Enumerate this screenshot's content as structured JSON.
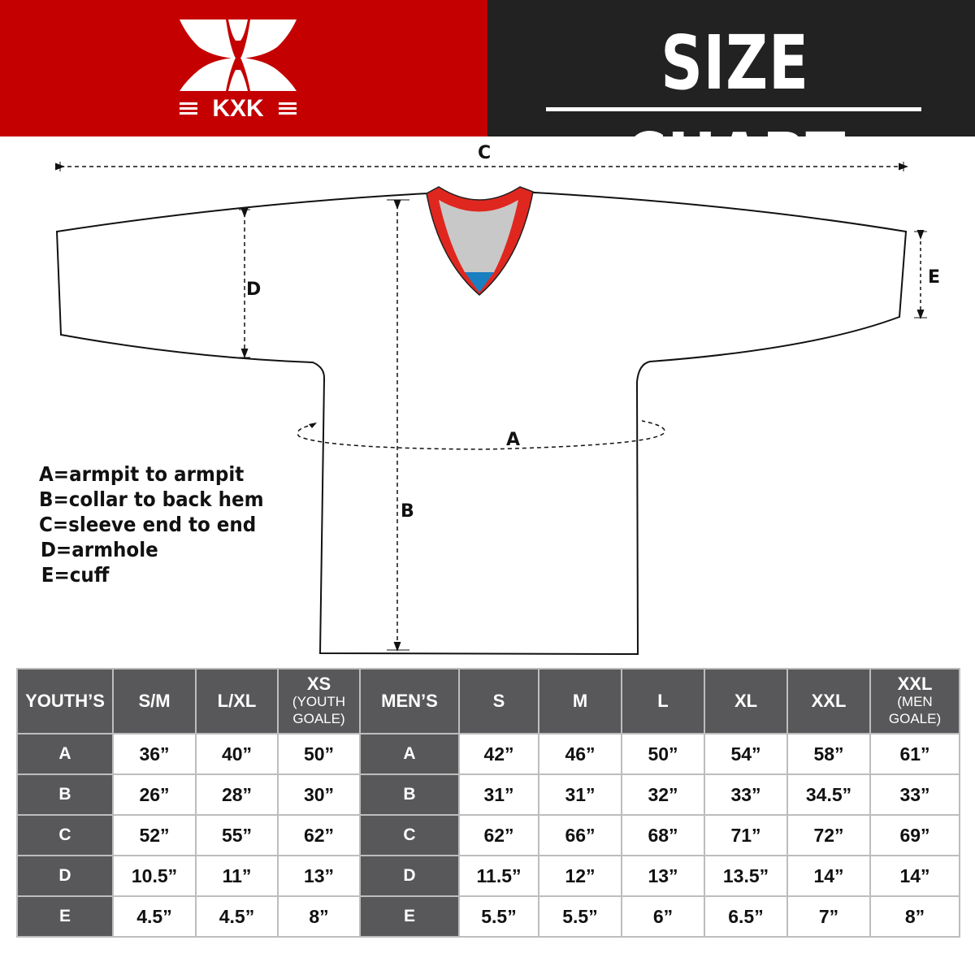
{
  "brand": {
    "logo_text": "KXK",
    "colors": {
      "red": "#c40000",
      "dark": "#222222",
      "table_header": "#58585a"
    }
  },
  "header": {
    "title": "SIZE CHART"
  },
  "diagram": {
    "labels": {
      "A": "A",
      "B": "B",
      "C": "C",
      "D": "D",
      "E": "E"
    },
    "legend": [
      "A=armpit to armpit",
      "B=collar to back hem",
      "C=sleeve end to end",
      "D=armhole",
      "E=cuff"
    ]
  },
  "table": {
    "youth_header": "YOUTH’S",
    "youth_sizes": [
      {
        "main": "S/M",
        "sub": ""
      },
      {
        "main": "L/XL",
        "sub": ""
      },
      {
        "main": "XS",
        "sub": "(YOUTH GOALE)"
      }
    ],
    "men_header": "MEN’S",
    "men_sizes": [
      {
        "main": "S",
        "sub": ""
      },
      {
        "main": "M",
        "sub": ""
      },
      {
        "main": "L",
        "sub": ""
      },
      {
        "main": "XL",
        "sub": ""
      },
      {
        "main": "XXL",
        "sub": ""
      },
      {
        "main": "XXL",
        "sub": "(MEN GOALE)"
      }
    ],
    "rows": [
      {
        "label": "A",
        "youth": [
          "36”",
          "40”",
          "50”"
        ],
        "men": [
          "42”",
          "46”",
          "50”",
          "54”",
          "58”",
          "61”"
        ]
      },
      {
        "label": "B",
        "youth": [
          "26”",
          "28”",
          "30”"
        ],
        "men": [
          "31”",
          "31”",
          "32”",
          "33”",
          "34.5”",
          "33”"
        ]
      },
      {
        "label": "C",
        "youth": [
          "52”",
          "55”",
          "62”"
        ],
        "men": [
          "62”",
          "66”",
          "68”",
          "71”",
          "72”",
          "69”"
        ]
      },
      {
        "label": "D",
        "youth": [
          "10.5”",
          "11”",
          "13”"
        ],
        "men": [
          "11.5”",
          "12”",
          "13”",
          "13.5”",
          "14”",
          "14”"
        ]
      },
      {
        "label": "E",
        "youth": [
          "4.5”",
          "4.5”",
          "8”"
        ],
        "men": [
          "5.5”",
          "5.5”",
          "6”",
          "6.5”",
          "7”",
          "8”"
        ]
      }
    ]
  }
}
